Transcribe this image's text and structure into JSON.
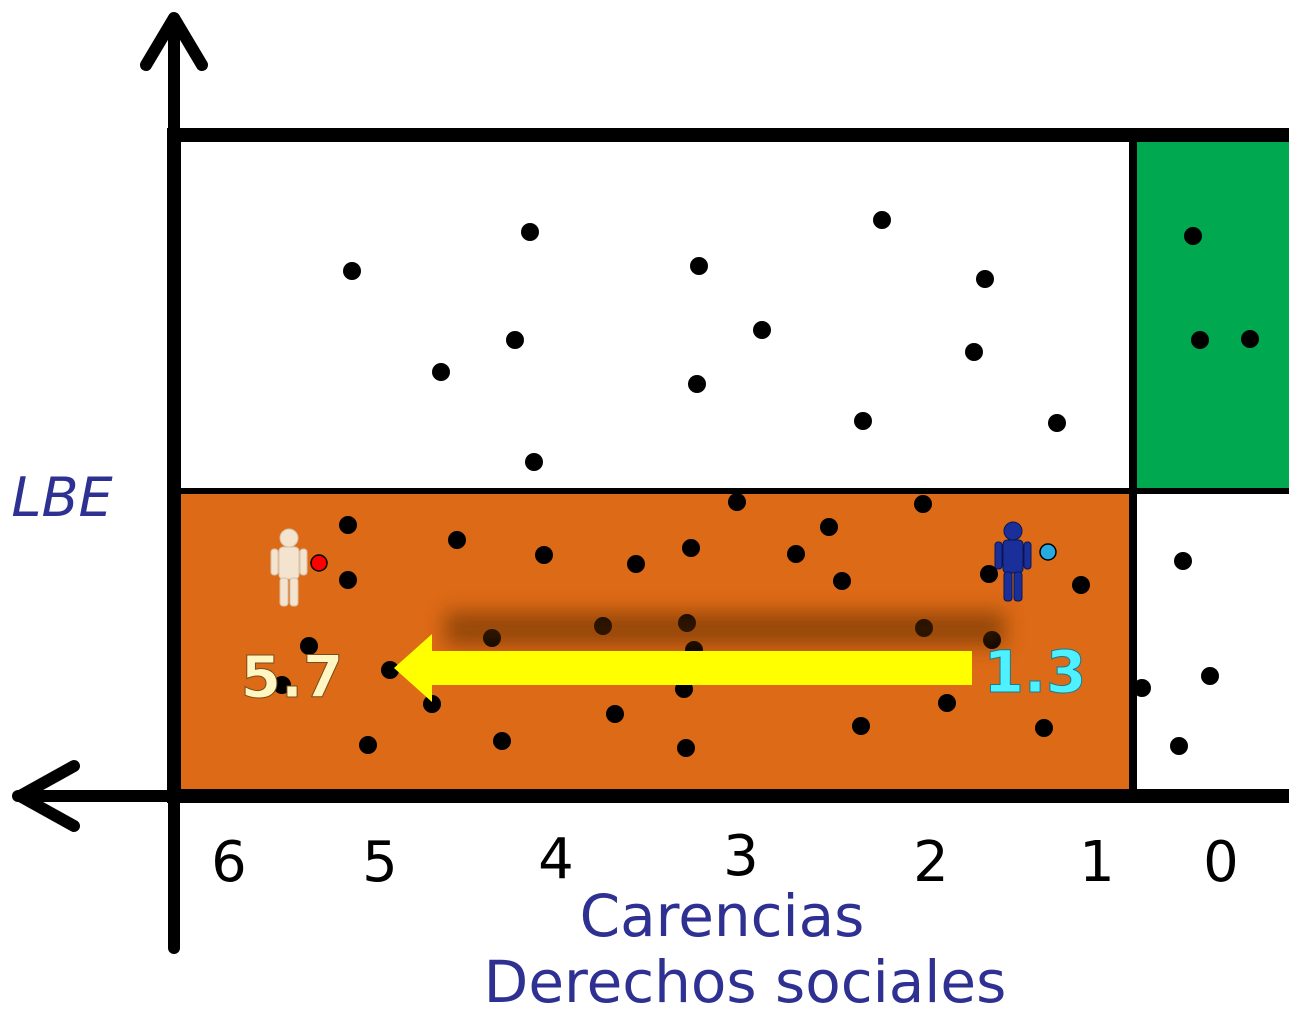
{
  "y_axis_label": "LBE",
  "x_axis_label_line1": "Carencias",
  "x_axis_label_line2": "Derechos sociales",
  "x_ticks": [
    "6",
    "5",
    "4",
    "3",
    "2",
    "1",
    "0"
  ],
  "arrow_start_value": "1.3",
  "arrow_end_value": "5.7",
  "colors": {
    "poverty_region": "#dd6a16",
    "wellbeing_region": "#00a84f",
    "frame": "#000000",
    "axis_label": "#2e3192",
    "arrow": "#ffff00",
    "start_value": "#4ff0ff",
    "end_value": "#fff6c2",
    "person_light": "#f3e3cf",
    "person_dark": "#1a2f9a",
    "marker_red": "#ff0000",
    "marker_blue": "#27a9e1"
  },
  "icons": [
    "person-light-icon",
    "person-dark-icon"
  ]
}
